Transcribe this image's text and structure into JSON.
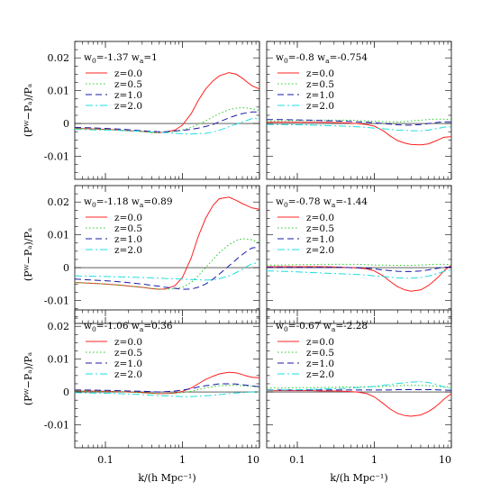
{
  "chart_data": {
    "type": "line",
    "layout": {
      "rows": 3,
      "cols": 2
    },
    "xlabel": "k/(h Mpc⁻¹)",
    "ylabel": "(Pᵂ−Pₐ)/Pₐ",
    "xscale": "log",
    "xlim": [
      0.04,
      10
    ],
    "ylim": [
      -0.017,
      0.025
    ],
    "xticks": [
      {
        "v": 0.1,
        "label": "0.1"
      },
      {
        "v": 1,
        "label": "1"
      },
      {
        "v": 10,
        "label": "10"
      }
    ],
    "yticks": [
      {
        "v": 0.02,
        "label": "0.02"
      },
      {
        "v": 0.01,
        "label": "0.01"
      },
      {
        "v": 0,
        "label": "0"
      },
      {
        "v": -0.01,
        "label": "-0.01"
      }
    ],
    "legend_labels": [
      "z=0.0",
      "z=0.5",
      "z=1.0",
      "z=2.0"
    ],
    "series_styles": [
      {
        "color": "#ff2020",
        "dash": "none"
      },
      {
        "color": "#22cc22",
        "dash": "1.5,2.5"
      },
      {
        "color": "#1a1aa8",
        "dash": "7,4"
      },
      {
        "color": "#22dddd",
        "dash": "8,3,2,3"
      }
    ],
    "x": [
      0.04,
      0.06,
      0.1,
      0.15,
      0.2,
      0.3,
      0.4,
      0.5,
      0.6,
      0.8,
      1.0,
      1.3,
      1.6,
      2.0,
      2.5,
      3.0,
      4.0,
      5.0,
      6.0,
      7.0,
      8.0,
      10.0
    ],
    "panels": [
      {
        "w0": "-1.37",
        "wa": "1",
        "series": [
          {
            "values": [
              -0.0015,
              -0.0016,
              -0.0018,
              -0.002,
              -0.0022,
              -0.0024,
              -0.0027,
              -0.0028,
              -0.0026,
              -0.002,
              -0.0005,
              0.003,
              0.007,
              0.0105,
              0.013,
              0.0145,
              0.0155,
              0.015,
              0.0138,
              0.0125,
              0.0115,
              0.0105
            ]
          },
          {
            "values": [
              -0.0015,
              -0.0016,
              -0.0018,
              -0.002,
              -0.0022,
              -0.0025,
              -0.0028,
              -0.0028,
              -0.0027,
              -0.0024,
              -0.002,
              -0.0012,
              -0.0003,
              0.0008,
              0.002,
              0.003,
              0.0042,
              0.0047,
              0.0048,
              0.0047,
              0.0045,
              0.004
            ]
          },
          {
            "values": [
              -0.0012,
              -0.0013,
              -0.0015,
              -0.0017,
              -0.0019,
              -0.0022,
              -0.0024,
              -0.0025,
              -0.0025,
              -0.0023,
              -0.0021,
              -0.0018,
              -0.0014,
              -0.0009,
              -0.0003,
              0.0005,
              0.0017,
              0.0025,
              0.003,
              0.0033,
              0.0035,
              0.0035
            ]
          },
          {
            "values": [
              -0.0018,
              -0.0019,
              -0.002,
              -0.0021,
              -0.0022,
              -0.0024,
              -0.0026,
              -0.0027,
              -0.0028,
              -0.003,
              -0.0031,
              -0.0032,
              -0.0031,
              -0.003,
              -0.0026,
              -0.0021,
              -0.001,
              -0.0002,
              0.0005,
              0.001,
              0.0015,
              0.0015
            ]
          }
        ]
      },
      {
        "w0": "-0.8",
        "wa": "-0.754",
        "series": [
          {
            "values": [
              0.0004,
              0.0004,
              0.0004,
              0.0004,
              0.0004,
              0.0003,
              0.0002,
              0.0001,
              0.0,
              -0.0003,
              -0.0008,
              -0.0022,
              -0.0038,
              -0.0052,
              -0.006,
              -0.0064,
              -0.0065,
              -0.0062,
              -0.0055,
              -0.0048,
              -0.0042,
              -0.004
            ]
          },
          {
            "values": [
              0.0008,
              0.0008,
              0.0009,
              0.0009,
              0.001,
              0.001,
              0.001,
              0.001,
              0.0009,
              0.0008,
              0.0007,
              0.0006,
              0.0005,
              0.0005,
              0.0006,
              0.0008,
              0.001,
              0.0012,
              0.0013,
              0.0013,
              0.0013,
              0.0012
            ]
          },
          {
            "values": [
              0.0012,
              0.0012,
              0.0011,
              0.001,
              0.0009,
              0.0008,
              0.0007,
              0.0006,
              0.0005,
              0.0004,
              0.0002,
              0.0,
              -0.0002,
              -0.0004,
              -0.0005,
              -0.0005,
              -0.0003,
              0.0,
              0.0002,
              0.0004,
              0.0005,
              0.0005
            ]
          },
          {
            "values": [
              -0.0003,
              -0.0003,
              -0.0004,
              -0.0005,
              -0.0006,
              -0.0007,
              -0.0008,
              -0.0009,
              -0.001,
              -0.0012,
              -0.0014,
              -0.0016,
              -0.0018,
              -0.002,
              -0.0021,
              -0.0022,
              -0.0022,
              -0.002,
              -0.0017,
              -0.0014,
              -0.0011,
              -0.001
            ]
          }
        ]
      },
      {
        "w0": "-1.18",
        "wa": "0.89",
        "series": [
          {
            "values": [
              -0.0045,
              -0.0047,
              -0.005,
              -0.0053,
              -0.0056,
              -0.006,
              -0.0064,
              -0.0066,
              -0.0065,
              -0.0055,
              -0.003,
              0.003,
              0.0095,
              0.015,
              0.019,
              0.021,
              0.0215,
              0.0205,
              0.0195,
              0.0188,
              0.0182,
              0.0178
            ]
          },
          {
            "values": [
              -0.0045,
              -0.0047,
              -0.005,
              -0.0053,
              -0.0056,
              -0.006,
              -0.0063,
              -0.0065,
              -0.0066,
              -0.0064,
              -0.006,
              -0.0045,
              -0.0025,
              0.0,
              0.0025,
              0.0045,
              0.007,
              0.0083,
              0.0088,
              0.0087,
              0.0085,
              0.0075
            ]
          },
          {
            "values": [
              -0.0035,
              -0.0037,
              -0.004,
              -0.0043,
              -0.0046,
              -0.005,
              -0.0054,
              -0.0057,
              -0.006,
              -0.0063,
              -0.0066,
              -0.0065,
              -0.006,
              -0.005,
              -0.0035,
              -0.002,
              0.0005,
              0.0025,
              0.004,
              0.0052,
              0.006,
              0.0063
            ]
          },
          {
            "values": [
              -0.0025,
              -0.0026,
              -0.0027,
              -0.0028,
              -0.0029,
              -0.003,
              -0.0031,
              -0.0032,
              -0.0033,
              -0.0034,
              -0.0035,
              -0.0036,
              -0.0037,
              -0.0038,
              -0.0037,
              -0.0034,
              -0.0025,
              -0.0015,
              -0.0005,
              0.0005,
              0.0012,
              0.0015
            ]
          }
        ]
      },
      {
        "w0": "-0.78",
        "wa": "-1.44",
        "series": [
          {
            "values": [
              0.0003,
              0.0003,
              0.0003,
              0.0003,
              0.0003,
              0.0002,
              0.0001,
              0.0,
              -0.0001,
              -0.0004,
              -0.001,
              -0.0025,
              -0.0042,
              -0.0058,
              -0.0068,
              -0.0072,
              -0.0068,
              -0.0055,
              -0.004,
              -0.0025,
              -0.001,
              0.0008
            ]
          },
          {
            "values": [
              0.0008,
              0.0008,
              0.0009,
              0.0009,
              0.001,
              0.001,
              0.001,
              0.001,
              0.001,
              0.0009,
              0.0008,
              0.0008,
              0.0007,
              0.0007,
              0.0007,
              0.0007,
              0.0008,
              0.0009,
              0.001,
              0.001,
              0.001,
              0.0009
            ]
          },
          {
            "values": [
              0.0001,
              0.0001,
              0.0001,
              0.0001,
              0.0001,
              0.0001,
              0.0001,
              0.0,
              0.0,
              -0.0002,
              -0.0004,
              -0.0007,
              -0.0009,
              -0.0011,
              -0.0012,
              -0.0012,
              -0.001,
              -0.0007,
              -0.0004,
              -0.0001,
              0.0001,
              0.0002
            ]
          },
          {
            "values": [
              -0.001,
              -0.0011,
              -0.0013,
              -0.0015,
              -0.0016,
              -0.0018,
              -0.0019,
              -0.002,
              -0.0021,
              -0.0023,
              -0.0025,
              -0.0027,
              -0.0029,
              -0.0031,
              -0.0032,
              -0.0032,
              -0.003,
              -0.0026,
              -0.0021,
              -0.0016,
              -0.0011,
              -0.0007
            ]
          }
        ]
      },
      {
        "w0": "-1.06",
        "wa": "0.36",
        "series": [
          {
            "values": [
              0.0003,
              0.0003,
              0.0002,
              0.0001,
              0.0,
              -0.0002,
              -0.0004,
              -0.0005,
              -0.0005,
              -0.0003,
              0.0002,
              0.0012,
              0.0025,
              0.0038,
              0.0048,
              0.0055,
              0.006,
              0.0058,
              0.0053,
              0.0048,
              0.0045,
              0.0043
            ]
          },
          {
            "values": [
              0.0003,
              0.0003,
              0.0002,
              0.0001,
              0.0,
              -0.0002,
              -0.0004,
              -0.0005,
              -0.0005,
              -0.0004,
              -0.0002,
              0.0002,
              0.0007,
              0.0012,
              0.0016,
              0.0019,
              0.002,
              0.002,
              0.0019,
              0.0018,
              0.0017,
              0.0015
            ]
          },
          {
            "values": [
              0.0006,
              0.0006,
              0.0005,
              0.0004,
              0.0003,
              0.0002,
              0.0001,
              0.0,
              0.0001,
              0.0003,
              0.0006,
              0.001,
              0.0015,
              0.0019,
              0.0022,
              0.0025,
              0.0025,
              0.0024,
              0.0022,
              0.002,
              0.0018,
              0.0016
            ]
          },
          {
            "values": [
              -0.0002,
              -0.0003,
              -0.0004,
              -0.0005,
              -0.0006,
              -0.0008,
              -0.001,
              -0.0011,
              -0.0012,
              -0.0013,
              -0.0014,
              -0.0014,
              -0.0013,
              -0.0012,
              -0.001,
              -0.0008,
              -0.0005,
              -0.0003,
              -0.0002,
              -0.0001,
              0.0,
              0.0
            ]
          }
        ]
      },
      {
        "w0": "-0.67",
        "wa": "-2.28",
        "series": [
          {
            "values": [
              0.0004,
              0.0004,
              0.0004,
              0.0004,
              0.0003,
              0.0003,
              0.0002,
              0.0001,
              0.0,
              -0.0005,
              -0.0015,
              -0.0035,
              -0.0052,
              -0.0065,
              -0.0072,
              -0.0074,
              -0.007,
              -0.006,
              -0.0048,
              -0.0035,
              -0.0022,
              -0.0005
            ]
          },
          {
            "values": [
              0.0012,
              0.0012,
              0.0013,
              0.0013,
              0.0014,
              0.0014,
              0.0015,
              0.0015,
              0.0015,
              0.0016,
              0.0016,
              0.0017,
              0.0018,
              0.0019,
              0.002,
              0.002,
              0.002,
              0.0019,
              0.0018,
              0.0017,
              0.0016,
              0.0015
            ]
          },
          {
            "values": [
              0.0006,
              0.0006,
              0.0006,
              0.0006,
              0.0006,
              0.0006,
              0.0006,
              0.0006,
              0.0006,
              0.0006,
              0.0006,
              0.0006,
              0.0006,
              0.0007,
              0.0007,
              0.0007,
              0.0007,
              0.0007,
              0.0007,
              0.0006,
              0.0006,
              0.0005
            ]
          },
          {
            "values": [
              0.0005,
              0.0006,
              0.0007,
              0.0008,
              0.0009,
              0.001,
              0.0011,
              0.0012,
              0.0013,
              0.0015,
              0.0017,
              0.002,
              0.0023,
              0.0026,
              0.0028,
              0.003,
              0.0031,
              0.0029,
              0.0025,
              0.002,
              0.0015,
              0.001
            ]
          }
        ]
      }
    ]
  }
}
